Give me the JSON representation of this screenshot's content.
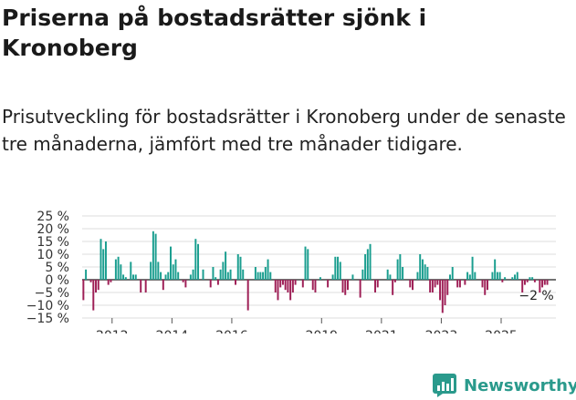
{
  "header": {
    "title": "Priserna på bostadsrätter sjönk i Kronoberg",
    "subtitle": "Prisutveckling för bostadsrätter i Kronoberg under de senaste tre månaderna, jämfört med tre månader tidigare."
  },
  "brand": {
    "name": "Newsworthy",
    "color": "#2a9a8c"
  },
  "colors": {
    "positive": "#1a9e8f",
    "negative": "#9e1f56",
    "grid": "#dddddd",
    "zero": "#444444"
  },
  "chart_data": {
    "type": "bar",
    "title": "Priserna på bostadsrätter sjönk i Kronoberg",
    "ylabel": "",
    "xlabel": "",
    "ylim": [
      -15,
      25
    ],
    "y_ticks": [
      25,
      20,
      15,
      10,
      5,
      0,
      -5,
      -10,
      -15
    ],
    "y_tick_labels": [
      "25 %",
      "20 %",
      "15 %",
      "10 %",
      "5 %",
      "0 %",
      "−5 %",
      "−10 %",
      "−15 %"
    ],
    "x_tick_labels": [
      "2012",
      "2014",
      "2016",
      "2019",
      "2021",
      "2023",
      "2025"
    ],
    "x_tick_positions": [
      2012,
      2014,
      2016,
      2019,
      2021,
      2023,
      2025
    ],
    "x_range": [
      2011.0,
      2026.83
    ],
    "start_year": 2011.0,
    "period_months": 1,
    "end_label": "−2 %",
    "values": [
      -8,
      4,
      0,
      -1,
      -12,
      -5,
      -4,
      16,
      12,
      15,
      -2,
      -1,
      0,
      8,
      9,
      6,
      2,
      1,
      0,
      7,
      2,
      2,
      0,
      -5,
      0,
      -5,
      0,
      7,
      19,
      18,
      7,
      3,
      -4,
      2,
      3,
      13,
      6,
      8,
      3,
      0,
      -1,
      -3,
      0,
      2,
      4,
      16,
      14,
      0,
      4,
      0,
      0,
      -3,
      5,
      1,
      -2,
      4,
      7,
      11,
      3,
      4,
      0,
      -2,
      10,
      9,
      4,
      0,
      -12,
      0,
      0,
      5,
      3,
      3,
      3,
      5,
      8,
      3,
      0,
      -5,
      -8,
      -3,
      -2,
      -4,
      -5,
      -8,
      -5,
      -2,
      0,
      0,
      -3,
      13,
      12,
      0,
      -4,
      -5,
      0,
      1,
      0,
      0,
      -3,
      0,
      2,
      9,
      9,
      7,
      -5,
      -6,
      -4,
      0,
      2,
      0,
      0,
      -7,
      4,
      10,
      12,
      14,
      0,
      -5,
      -3,
      0,
      0,
      0,
      4,
      2,
      -6,
      -1,
      8,
      10,
      5,
      0,
      0,
      -3,
      -4,
      0,
      3,
      10,
      8,
      6,
      5,
      -5,
      -5,
      -3,
      -2,
      -8,
      -13,
      -10,
      -6,
      2,
      5,
      0,
      -3,
      -3,
      0,
      -2,
      3,
      2,
      9,
      3,
      0,
      0,
      -3,
      -6,
      -4,
      0,
      3,
      8,
      3,
      3,
      -1,
      1,
      0,
      0,
      1,
      2,
      3,
      0,
      -5,
      -2,
      -1,
      1,
      1,
      -1,
      0,
      -5,
      -3,
      -2,
      -2
    ]
  }
}
